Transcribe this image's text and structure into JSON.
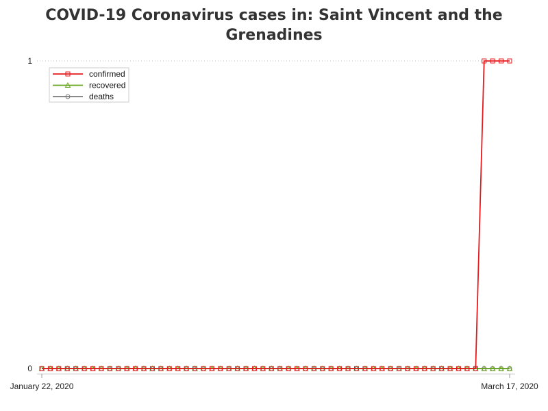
{
  "chart_data": {
    "type": "line",
    "title_lines": [
      "COVID-19 Coronavirus cases in: Saint Vincent and the",
      "Grenadines"
    ],
    "x_start": "2020-01-22",
    "x_end": "2020-03-17",
    "x_tick_labels": [
      "January 22, 2020",
      "March 17, 2020"
    ],
    "y_ticks": [
      0,
      1
    ],
    "ylim": [
      0,
      1
    ],
    "grid": "dotted line at y=1",
    "legend_position": "top-left",
    "series": [
      {
        "name": "confirmed",
        "color": "#e41a1c",
        "marker": "square",
        "values": [
          0,
          0,
          0,
          0,
          0,
          0,
          0,
          0,
          0,
          0,
          0,
          0,
          0,
          0,
          0,
          0,
          0,
          0,
          0,
          0,
          0,
          0,
          0,
          0,
          0,
          0,
          0,
          0,
          0,
          0,
          0,
          0,
          0,
          0,
          0,
          0,
          0,
          0,
          0,
          0,
          0,
          0,
          0,
          0,
          0,
          0,
          0,
          0,
          0,
          0,
          0,
          0,
          1,
          1,
          1,
          1
        ]
      },
      {
        "name": "recovered",
        "color": "#66a61e",
        "marker": "triangle",
        "values": [
          0,
          0,
          0,
          0,
          0,
          0,
          0,
          0,
          0,
          0,
          0,
          0,
          0,
          0,
          0,
          0,
          0,
          0,
          0,
          0,
          0,
          0,
          0,
          0,
          0,
          0,
          0,
          0,
          0,
          0,
          0,
          0,
          0,
          0,
          0,
          0,
          0,
          0,
          0,
          0,
          0,
          0,
          0,
          0,
          0,
          0,
          0,
          0,
          0,
          0,
          0,
          0,
          0,
          0,
          0,
          0
        ]
      },
      {
        "name": "deaths",
        "color": "#7a7a7a",
        "marker": "circle",
        "values": [
          0,
          0,
          0,
          0,
          0,
          0,
          0,
          0,
          0,
          0,
          0,
          0,
          0,
          0,
          0,
          0,
          0,
          0,
          0,
          0,
          0,
          0,
          0,
          0,
          0,
          0,
          0,
          0,
          0,
          0,
          0,
          0,
          0,
          0,
          0,
          0,
          0,
          0,
          0,
          0,
          0,
          0,
          0,
          0,
          0,
          0,
          0,
          0,
          0,
          0,
          0,
          0,
          0,
          0,
          0,
          0
        ]
      }
    ]
  }
}
